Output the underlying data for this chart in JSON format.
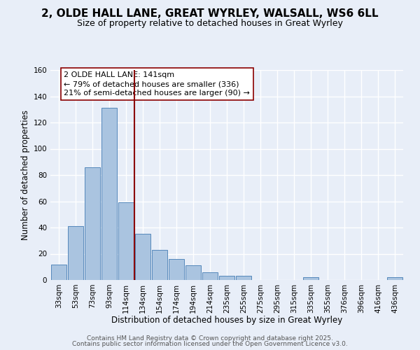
{
  "title": "2, OLDE HALL LANE, GREAT WYRLEY, WALSALL, WS6 6LL",
  "subtitle": "Size of property relative to detached houses in Great Wyrley",
  "xlabel": "Distribution of detached houses by size in Great Wyrley",
  "ylabel": "Number of detached properties",
  "categories": [
    "33sqm",
    "53sqm",
    "73sqm",
    "93sqm",
    "114sqm",
    "134sqm",
    "154sqm",
    "174sqm",
    "194sqm",
    "214sqm",
    "235sqm",
    "255sqm",
    "275sqm",
    "295sqm",
    "315sqm",
    "335sqm",
    "355sqm",
    "376sqm",
    "396sqm",
    "416sqm",
    "436sqm"
  ],
  "values": [
    12,
    41,
    86,
    131,
    59,
    35,
    23,
    16,
    11,
    6,
    3,
    3,
    0,
    0,
    0,
    2,
    0,
    0,
    0,
    0,
    2
  ],
  "bar_color": "#aac4e0",
  "bar_edge_color": "#5588bb",
  "background_color": "#e8eef8",
  "grid_color": "#ffffff",
  "vline_color": "#8b0000",
  "annotation_text": "2 OLDE HALL LANE: 141sqm\n← 79% of detached houses are smaller (336)\n21% of semi-detached houses are larger (90) →",
  "annotation_box_color": "#ffffff",
  "annotation_box_edge": "#8b0000",
  "ylim": [
    0,
    160
  ],
  "yticks": [
    0,
    20,
    40,
    60,
    80,
    100,
    120,
    140,
    160
  ],
  "footer1": "Contains HM Land Registry data © Crown copyright and database right 2025.",
  "footer2": "Contains public sector information licensed under the Open Government Licence v3.0.",
  "title_fontsize": 11,
  "subtitle_fontsize": 9,
  "axis_label_fontsize": 8.5,
  "tick_fontsize": 7.5,
  "annotation_fontsize": 8,
  "footer_fontsize": 6.5
}
